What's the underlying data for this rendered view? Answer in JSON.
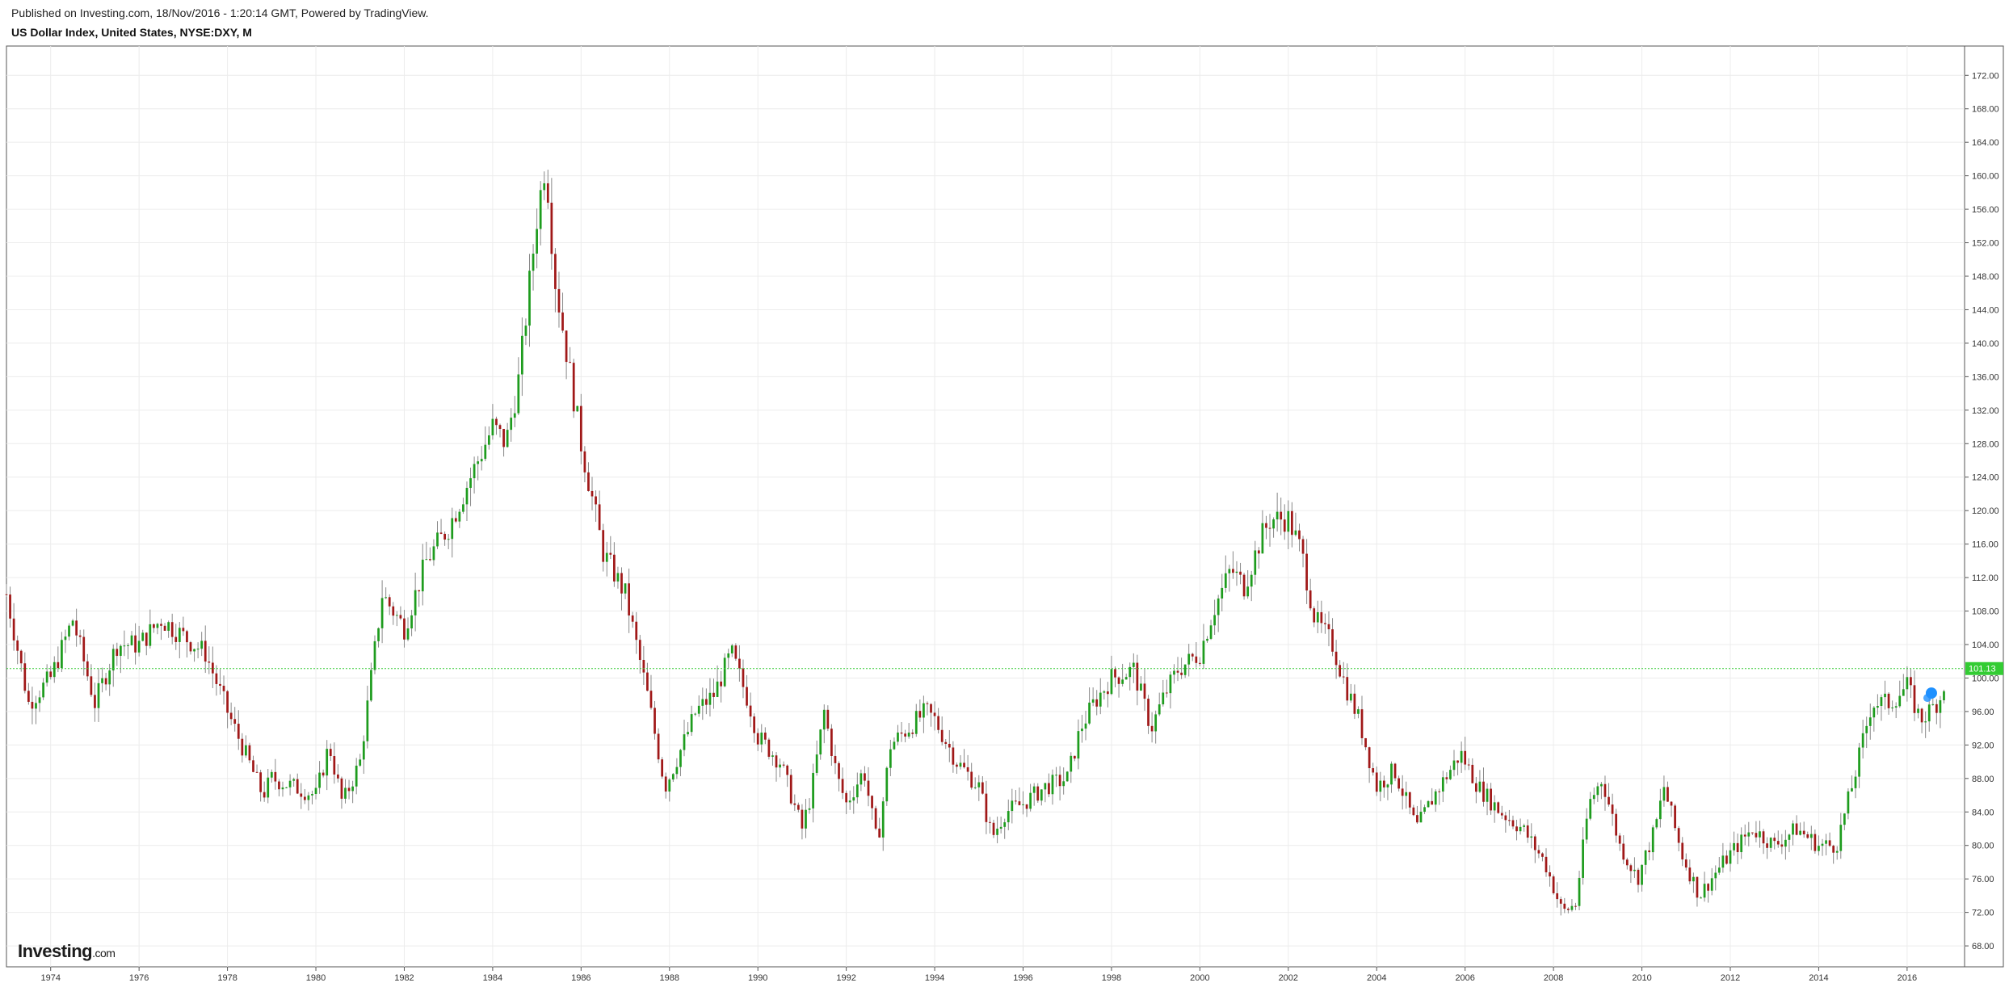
{
  "header": {
    "published": "Published on Investing.com, 18/Nov/2016 - 1:20:14 GMT, Powered by TradingView.",
    "title": "US Dollar Index, United States, NYSE:DXY, M"
  },
  "logo": {
    "main": "Investing",
    "suffix": ".com"
  },
  "price_badge": {
    "text": "101.13",
    "color": "#33cc33"
  },
  "colors": {
    "up": "#1e9c1e",
    "down": "#a01818",
    "grid": "#ececec",
    "price_line": "#33cc33",
    "marker": "#1e90ff"
  },
  "chart_data": {
    "type": "candlestick",
    "title": "US Dollar Index, United States, NYSE:DXY, M",
    "interval": "monthly",
    "x_ticks": [
      "1974",
      "1976",
      "1978",
      "1980",
      "1982",
      "1984",
      "1986",
      "1988",
      "1990",
      "1992",
      "1994",
      "1996",
      "1998",
      "2000",
      "2002",
      "2004",
      "2006",
      "2008",
      "2010",
      "2012",
      "2014",
      "2016"
    ],
    "y_ticks": [
      "68.00",
      "72.00",
      "76.00",
      "80.00",
      "84.00",
      "88.00",
      "92.00",
      "96.00",
      "100.00",
      "104.00",
      "108.00",
      "112.00",
      "116.00",
      "120.00",
      "124.00",
      "128.00",
      "132.00",
      "136.00",
      "140.00",
      "144.00",
      "148.00",
      "152.00",
      "156.00",
      "160.00",
      "164.00",
      "168.00",
      "172.00"
    ],
    "ylim": [
      65.5,
      175.5
    ],
    "xlim": [
      1973.0,
      2017.3
    ],
    "last_price": 101.13,
    "grid": true,
    "price_scale": "right",
    "series_close_anchors": [
      [
        1973.0,
        110
      ],
      [
        1973.5,
        97
      ],
      [
        1974.0,
        100
      ],
      [
        1974.5,
        107
      ],
      [
        1975.0,
        97
      ],
      [
        1975.5,
        104
      ],
      [
        1976.0,
        104
      ],
      [
        1976.5,
        107
      ],
      [
        1977.0,
        105
      ],
      [
        1977.5,
        103
      ],
      [
        1978.0,
        96
      ],
      [
        1978.8,
        86
      ],
      [
        1979.0,
        88
      ],
      [
        1979.5,
        87
      ],
      [
        1980.0,
        86
      ],
      [
        1980.3,
        92
      ],
      [
        1980.6,
        85
      ],
      [
        1981.0,
        90
      ],
      [
        1981.5,
        110
      ],
      [
        1982.0,
        106
      ],
      [
        1982.5,
        114
      ],
      [
        1983.0,
        118
      ],
      [
        1983.5,
        124
      ],
      [
        1984.0,
        130
      ],
      [
        1984.3,
        128
      ],
      [
        1984.6,
        136
      ],
      [
        1985.0,
        155
      ],
      [
        1985.2,
        162
      ],
      [
        1985.4,
        148
      ],
      [
        1985.7,
        138
      ],
      [
        1986.0,
        128
      ],
      [
        1986.5,
        115
      ],
      [
        1987.0,
        110
      ],
      [
        1987.5,
        98
      ],
      [
        1987.9,
        87
      ],
      [
        1988.3,
        92
      ],
      [
        1988.6,
        96
      ],
      [
        1989.0,
        98
      ],
      [
        1989.4,
        103
      ],
      [
        1989.8,
        97
      ],
      [
        1990.0,
        93
      ],
      [
        1990.5,
        90
      ],
      [
        1991.0,
        82
      ],
      [
        1991.2,
        86
      ],
      [
        1991.5,
        96
      ],
      [
        1991.8,
        88
      ],
      [
        1992.0,
        85
      ],
      [
        1992.4,
        89
      ],
      [
        1992.7,
        80
      ],
      [
        1993.0,
        92
      ],
      [
        1993.4,
        94
      ],
      [
        1993.8,
        96
      ],
      [
        1994.0,
        95
      ],
      [
        1994.5,
        90
      ],
      [
        1995.0,
        87
      ],
      [
        1995.3,
        81
      ],
      [
        1995.6,
        84
      ],
      [
        1996.0,
        85
      ],
      [
        1996.5,
        87
      ],
      [
        1997.0,
        88
      ],
      [
        1997.3,
        94
      ],
      [
        1997.6,
        97
      ],
      [
        1998.0,
        100
      ],
      [
        1998.5,
        101
      ],
      [
        1998.9,
        94
      ],
      [
        1999.2,
        98
      ],
      [
        1999.5,
        101
      ],
      [
        2000.0,
        103
      ],
      [
        2000.3,
        108
      ],
      [
        2000.7,
        113
      ],
      [
        2001.0,
        111
      ],
      [
        2001.4,
        117
      ],
      [
        2001.6,
        119
      ],
      [
        2002.0,
        119
      ],
      [
        2002.3,
        115
      ],
      [
        2002.6,
        107
      ],
      [
        2003.0,
        104
      ],
      [
        2003.3,
        99
      ],
      [
        2003.6,
        95
      ],
      [
        2004.0,
        87
      ],
      [
        2004.4,
        89
      ],
      [
        2004.9,
        82
      ],
      [
        2005.3,
        86
      ],
      [
        2005.9,
        91
      ],
      [
        2006.3,
        87
      ],
      [
        2006.8,
        84
      ],
      [
        2007.3,
        82
      ],
      [
        2007.8,
        78
      ],
      [
        2008.2,
        72
      ],
      [
        2008.5,
        73
      ],
      [
        2008.8,
        85
      ],
      [
        2009.1,
        88
      ],
      [
        2009.5,
        80
      ],
      [
        2009.9,
        76
      ],
      [
        2010.3,
        82
      ],
      [
        2010.5,
        87
      ],
      [
        2010.9,
        79
      ],
      [
        2011.3,
        74
      ],
      [
        2011.7,
        77
      ],
      [
        2012.0,
        79
      ],
      [
        2012.5,
        82
      ],
      [
        2013.0,
        80
      ],
      [
        2013.5,
        82
      ],
      [
        2014.0,
        80
      ],
      [
        2014.4,
        80
      ],
      [
        2014.8,
        88
      ],
      [
        2015.2,
        97
      ],
      [
        2015.6,
        97
      ],
      [
        2016.0,
        99
      ],
      [
        2016.3,
        95
      ],
      [
        2016.5,
        96
      ],
      [
        2016.8,
        98
      ],
      [
        2016.88,
        101.13
      ]
    ]
  }
}
